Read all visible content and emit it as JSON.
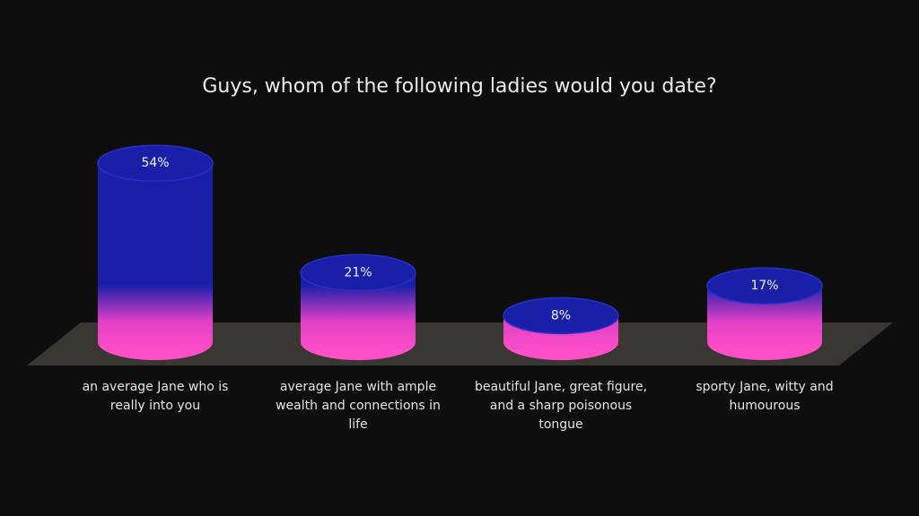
{
  "chart_data": {
    "type": "bar",
    "title": "Guys, whom of the following ladies would you date?",
    "categories": [
      "an average Jane who is really into you",
      "average Jane with ample wealth and connections in life",
      "beautiful Jane, great figure, and a sharp poisonous tongue",
      "sporty Jane, witty and humourous"
    ],
    "values": [
      54,
      21,
      8,
      17
    ],
    "value_labels": [
      "54%",
      "21%",
      "8%",
      "17%"
    ],
    "color": "#1a1fa8"
  }
}
